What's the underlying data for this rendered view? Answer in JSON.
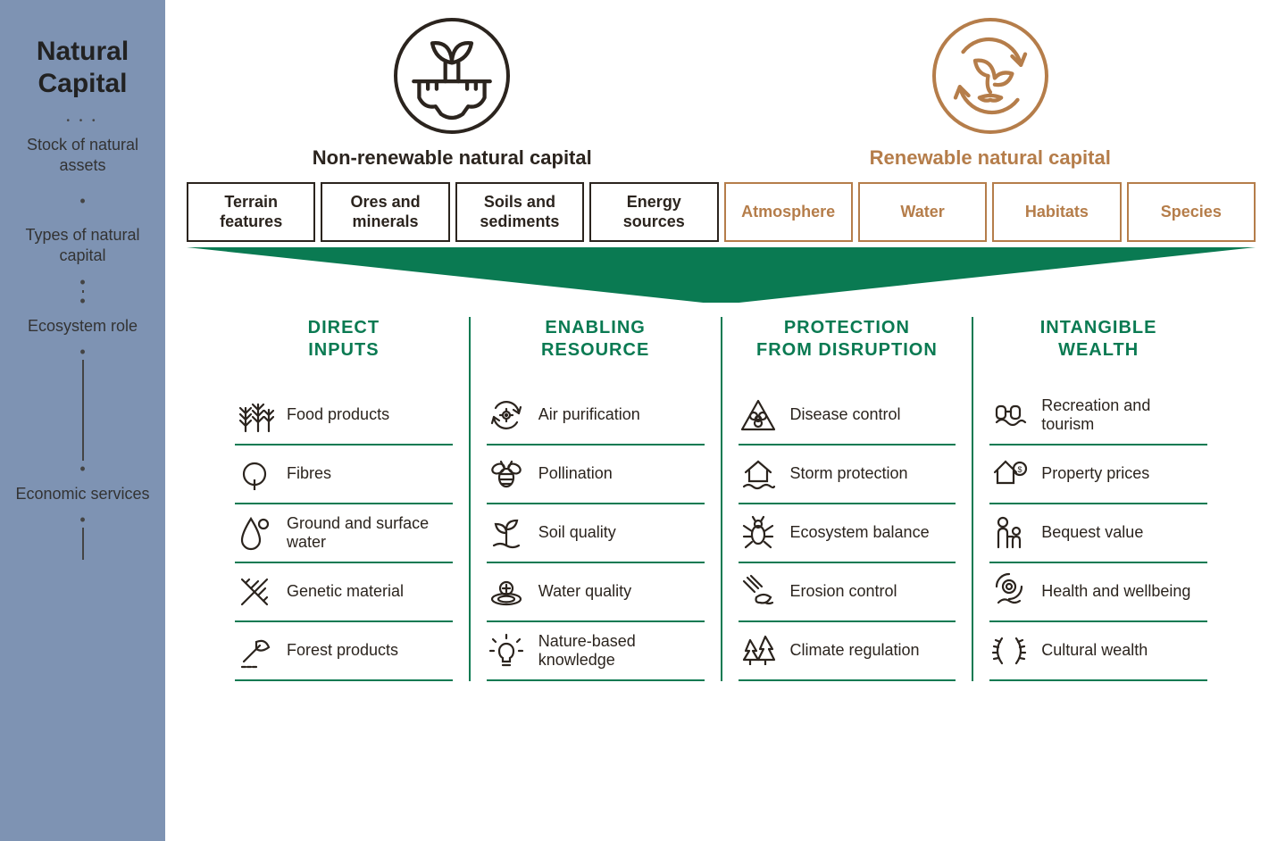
{
  "colors": {
    "sidebar_bg": "#7e93b3",
    "nonrenew_border": "#2b241e",
    "nonrenew_text": "#2b241e",
    "renew_border": "#b57d4a",
    "renew_text": "#b57d4a",
    "service_green": "#0a7a52",
    "funnel_fill": "#0a7a52",
    "item_text": "#2b241e"
  },
  "sidebar": {
    "title_l1": "Natural",
    "title_l2": "Capital",
    "labels": [
      "Stock of natural assets",
      "Types of natural capital",
      "Ecosystem role",
      "Economic services"
    ]
  },
  "stocks": {
    "nonrenew": {
      "title": "Non-renewable natural capital",
      "types": [
        "Terrain features",
        "Ores and minerals",
        "Soils and sediments",
        "Energy sources"
      ]
    },
    "renew": {
      "title": "Renewable natural capital",
      "types": [
        "Atmosphere",
        "Water",
        "Habitats",
        "Species"
      ]
    }
  },
  "services": [
    {
      "head_l1": "DIRECT",
      "head_l2": "INPUTS",
      "items": [
        {
          "icon": "wheat-icon",
          "label": "Food products"
        },
        {
          "icon": "tree-icon",
          "label": "Fibres"
        },
        {
          "icon": "droplet-icon",
          "label": "Ground and surface water"
        },
        {
          "icon": "dna-icon",
          "label": "Genetic material"
        },
        {
          "icon": "axe-icon",
          "label": "Forest products"
        }
      ]
    },
    {
      "head_l1": "ENABLING",
      "head_l2": "RESOURCE",
      "items": [
        {
          "icon": "air-cycle-icon",
          "label": "Air purification"
        },
        {
          "icon": "bee-icon",
          "label": "Pollination"
        },
        {
          "icon": "sprout-icon",
          "label": "Soil quality"
        },
        {
          "icon": "water-ripple-icon",
          "label": "Water quality"
        },
        {
          "icon": "lightbulb-icon",
          "label": "Nature-based knowledge"
        }
      ]
    },
    {
      "head_l1": "PROTECTION",
      "head_l2": "FROM DISRUPTION",
      "items": [
        {
          "icon": "biohazard-icon",
          "label": "Disease control"
        },
        {
          "icon": "house-flood-icon",
          "label": "Storm protection"
        },
        {
          "icon": "bug-icon",
          "label": "Ecosystem balance"
        },
        {
          "icon": "erosion-icon",
          "label": "Erosion control"
        },
        {
          "icon": "forest-icon",
          "label": "Climate regulation"
        }
      ]
    },
    {
      "head_l1": "INTANGIBLE",
      "head_l2": "WEALTH",
      "items": [
        {
          "icon": "binoculars-icon",
          "label": "Recreation and tourism"
        },
        {
          "icon": "house-price-icon",
          "label": "Property prices"
        },
        {
          "icon": "family-icon",
          "label": "Bequest value"
        },
        {
          "icon": "wellbeing-icon",
          "label": "Health and wellbeing"
        },
        {
          "icon": "laurel-icon",
          "label": "Cultural wealth"
        }
      ]
    }
  ]
}
